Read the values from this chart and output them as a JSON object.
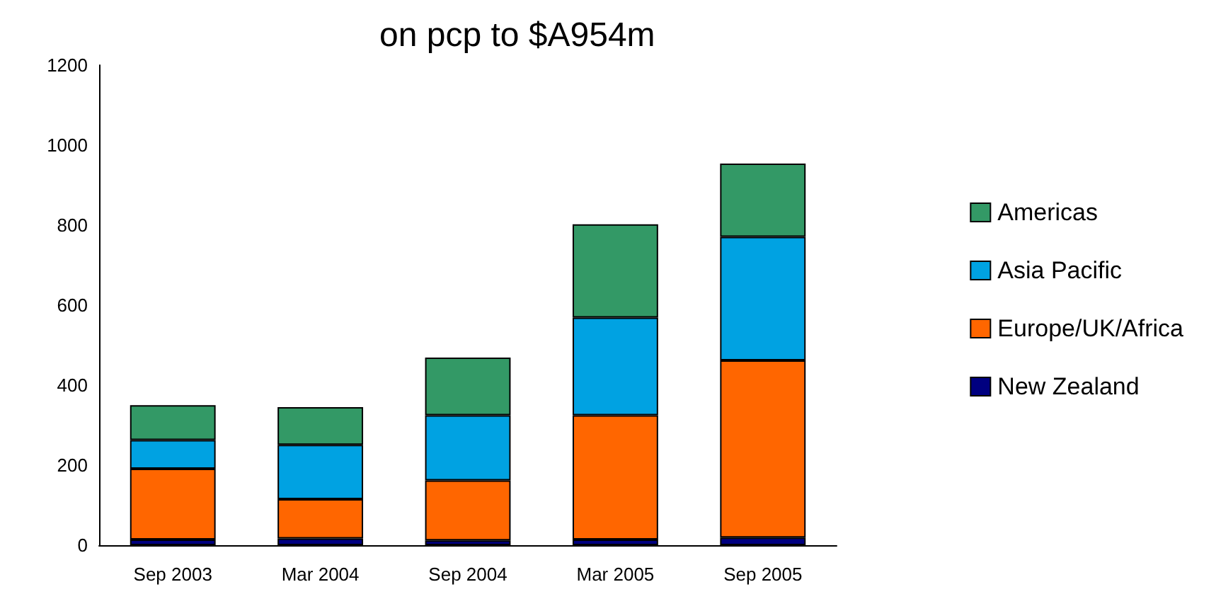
{
  "chart_data": {
    "type": "bar",
    "title": "on pcp to $A954m",
    "stacked": true,
    "categories": [
      "Sep 2003",
      "Mar 2004",
      "Sep 2004",
      "Mar 2005",
      "Sep 2005"
    ],
    "series": [
      {
        "name": "New Zealand",
        "color": "#000080",
        "values": [
          14,
          17,
          12,
          14,
          19
        ]
      },
      {
        "name": "Europe/UK/Africa",
        "color": "#ff6600",
        "values": [
          177,
          98,
          150,
          311,
          443
        ]
      },
      {
        "name": "Asia Pacific",
        "color": "#00a2e2",
        "values": [
          72,
          136,
          163,
          244,
          309
        ]
      },
      {
        "name": "Americas",
        "color": "#339966",
        "values": [
          87,
          94,
          144,
          233,
          183
        ]
      }
    ],
    "ylim": [
      0,
      1200
    ],
    "yticks": [
      0,
      200,
      400,
      600,
      800,
      1000,
      1200
    ],
    "grid": false,
    "legend": "right"
  }
}
